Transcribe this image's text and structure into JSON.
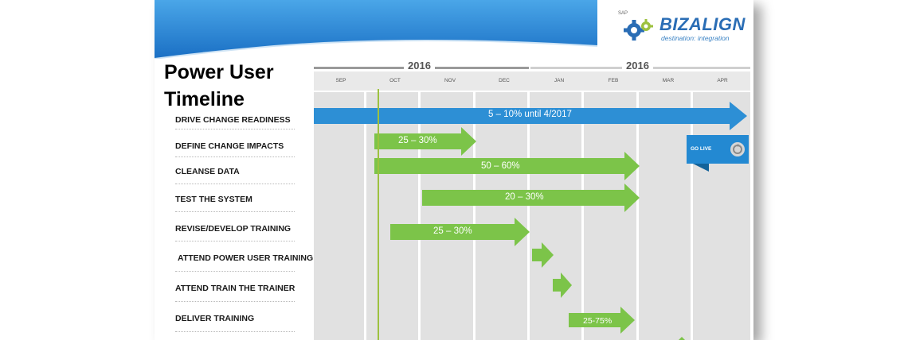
{
  "title": "Power User Timeline",
  "logo": {
    "sap": "SAP",
    "name": "BIZALIGN",
    "tagline": "destination: integration"
  },
  "years": [
    "2016",
    "2016"
  ],
  "months": [
    "SEP",
    "OCT",
    "NOV",
    "DEC",
    "JAN",
    "FEB",
    "MAR",
    "APR"
  ],
  "tasks": [
    "DRIVE CHANGE READINESS",
    "DEFINE CHANGE IMPACTS",
    "CLEANSE DATA",
    "TEST THE SYSTEM",
    "REVISE/DEVELOP TRAINING",
    "ATTEND POWER USER TRAINING",
    "ATTEND TRAIN THE TRAINER",
    "DELIVER TRAINING"
  ],
  "bars": [
    {
      "label": "5 – 10% until 4/2017",
      "color": "#2d8fd5"
    },
    {
      "label": "25 – 30%",
      "color": "#7cc449"
    },
    {
      "label": "50 – 60%",
      "color": "#7cc449"
    },
    {
      "label": "20 – 30%",
      "color": "#7cc449"
    },
    {
      "label": "25 – 30%",
      "color": "#7cc449"
    },
    {
      "label": "",
      "color": "#7cc449"
    },
    {
      "label": "",
      "color": "#7cc449"
    },
    {
      "label": "25-75%",
      "color": "#7cc449"
    }
  ],
  "milestone": {
    "label": "GO LIVE",
    "color": "#2389d2"
  },
  "colors": {
    "banner_dark": "#1a6fc4",
    "banner_light": "#4aa6e8",
    "today_line": "#9dc13f",
    "grid": "#e1e1e1"
  }
}
